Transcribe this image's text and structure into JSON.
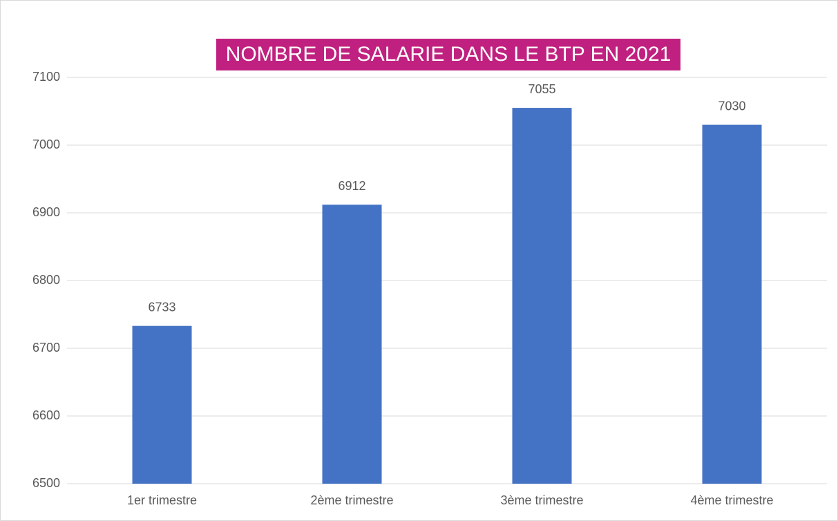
{
  "chart_data": {
    "type": "bar",
    "title": "NOMBRE DE SALARIE DANS LE BTP EN 2021",
    "categories": [
      "1er trimestre",
      "2ème trimestre",
      "3ème trimestre",
      "4ème trimestre"
    ],
    "values": [
      6733,
      6912,
      7055,
      7030
    ],
    "color": "#4472c4",
    "title_background": "#c0207f",
    "ylim": [
      6500,
      7100
    ],
    "yticks": [
      6500,
      6600,
      6700,
      6800,
      6900,
      7000,
      7100
    ],
    "grid": true
  }
}
